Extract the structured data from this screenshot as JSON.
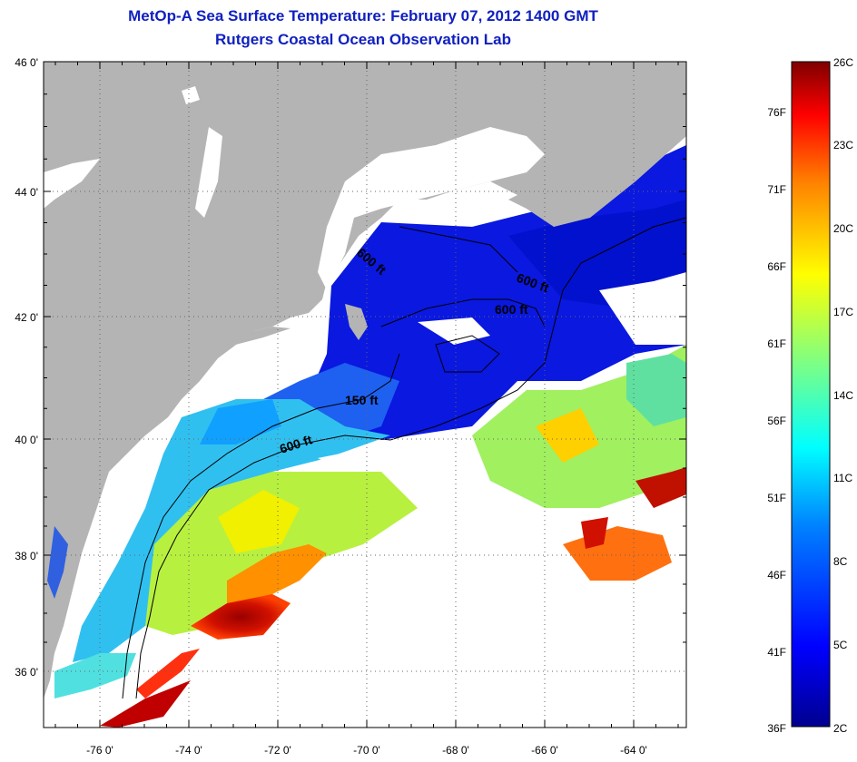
{
  "header": {
    "title": "MetOp-A Sea Surface Temperature:  February 07, 2012 1400 GMT",
    "subtitle": "Rutgers Coastal Ocean Observation Lab"
  },
  "map": {
    "lat_labels": [
      "46 0'",
      "44 0'",
      "42 0'",
      "40 0'",
      "38 0'",
      "36 0'"
    ],
    "lon_labels": [
      "-76 0'",
      "-74 0'",
      "-72 0'",
      "-70 0'",
      "-68 0'",
      "-66 0'",
      "-64 0'"
    ],
    "contour_labels": [
      "600 ft",
      "600 ft",
      "600 ft",
      "150 ft",
      "600 ft"
    ],
    "land_color": "#b4b4b4",
    "cloud_color": "#ffffff"
  },
  "colorbar": {
    "fahrenheit": [
      "76F",
      "71F",
      "66F",
      "61F",
      "56F",
      "51F",
      "46F",
      "41F",
      "36F"
    ],
    "celsius": [
      "26C",
      "23C",
      "20C",
      "17C",
      "14C",
      "11C",
      "8C",
      "5C",
      "2C"
    ],
    "scale_colors": [
      "#7f0000",
      "#ff0000",
      "#ff8000",
      "#ffff00",
      "#80ff80",
      "#00ffff",
      "#0080ff",
      "#0000ff",
      "#00008f"
    ]
  }
}
